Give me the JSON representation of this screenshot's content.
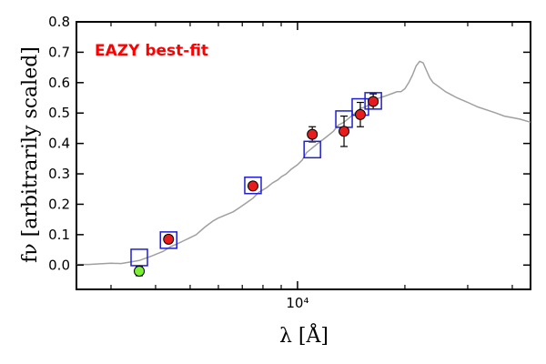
{
  "chart_data": {
    "type": "scatter",
    "title": "",
    "annotation": "EAZY best-fit",
    "annotation_color": "#ff0000",
    "xlabel": "λ [Å]",
    "ylabel": "fν [arbitrarily scaled]",
    "xscale": "log",
    "xlim": [
      2400,
      45000
    ],
    "ylim": [
      -0.08,
      0.8
    ],
    "yticks": [
      0.0,
      0.1,
      0.2,
      0.3,
      0.4,
      0.5,
      0.6,
      0.7,
      0.8
    ],
    "ytick_labels": [
      "0.0",
      "0.1",
      "0.2",
      "0.3",
      "0.4",
      "0.5",
      "0.6",
      "0.7",
      "0.8"
    ],
    "xtick_major": [
      10000
    ],
    "xtick_major_labels": [
      "10⁴"
    ],
    "xtick_minor": [
      3000,
      4000,
      5000,
      6000,
      7000,
      8000,
      9000,
      20000,
      30000,
      40000
    ],
    "colors": {
      "sed": "#a0a0a0",
      "model_box": "#1f1fd0",
      "detection": "#e81c1c",
      "nondetection": "#7cf030",
      "errorbar": "#000000"
    },
    "series": [
      {
        "name": "EAZY best-fit SED",
        "kind": "line",
        "x": [
          2400,
          2600,
          2800,
          3000,
          3200,
          3400,
          3600,
          3700,
          3800,
          3900,
          4000,
          4200,
          4400,
          4600,
          4800,
          5000,
          5200,
          5500,
          5800,
          6000,
          6300,
          6600,
          6900,
          7200,
          7500,
          7800,
          8200,
          8500,
          8800,
          9000,
          9300,
          9600,
          10000,
          10300,
          10600,
          11000,
          11400,
          12000,
          12600,
          13000,
          13500,
          14000,
          14500,
          15000,
          15500,
          16000,
          16500,
          17000,
          17500,
          18000,
          18500,
          19000,
          19500,
          20000,
          20500,
          21000,
          21500,
          22000,
          22500,
          23000,
          23500,
          24000,
          25000,
          26000,
          27000,
          28000,
          30000,
          32000,
          34000,
          36000,
          38000,
          40000,
          42000,
          45000
        ],
        "y": [
          0.002,
          0.002,
          0.004,
          0.006,
          0.005,
          0.01,
          0.015,
          0.02,
          0.025,
          0.03,
          0.035,
          0.045,
          0.06,
          0.07,
          0.08,
          0.09,
          0.1,
          0.125,
          0.145,
          0.155,
          0.165,
          0.175,
          0.19,
          0.205,
          0.22,
          0.24,
          0.255,
          0.27,
          0.28,
          0.29,
          0.3,
          0.315,
          0.33,
          0.345,
          0.37,
          0.385,
          0.4,
          0.42,
          0.44,
          0.46,
          0.47,
          0.485,
          0.5,
          0.515,
          0.52,
          0.53,
          0.545,
          0.55,
          0.555,
          0.56,
          0.565,
          0.57,
          0.57,
          0.58,
          0.6,
          0.625,
          0.655,
          0.67,
          0.665,
          0.64,
          0.615,
          0.6,
          0.585,
          0.57,
          0.56,
          0.55,
          0.535,
          0.52,
          0.51,
          0.5,
          0.49,
          0.485,
          0.48,
          0.47
        ]
      },
      {
        "name": "Model photometry",
        "kind": "open-square",
        "x": [
          3600,
          4350,
          7500,
          11000,
          13500,
          15000,
          16300
        ],
        "y": [
          0.025,
          0.082,
          0.262,
          0.38,
          0.48,
          0.52,
          0.54
        ]
      },
      {
        "name": "Observed photometry",
        "kind": "circle-errorbar",
        "x": [
          3600,
          4350,
          7500,
          11000,
          13500,
          15000,
          16300
        ],
        "y": [
          -0.02,
          0.085,
          0.26,
          0.43,
          0.44,
          0.495,
          0.538
        ],
        "yerr": [
          0.015,
          0.012,
          0.012,
          0.025,
          0.05,
          0.04,
          0.025
        ],
        "color_names": [
          "nondetection",
          "detection",
          "detection",
          "detection",
          "detection",
          "detection",
          "detection"
        ]
      }
    ]
  }
}
